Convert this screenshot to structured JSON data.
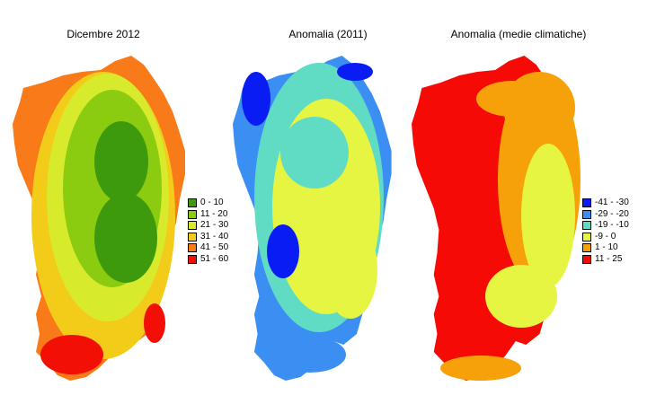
{
  "maps": [
    {
      "title": "Dicembre 2012",
      "legend": [
        {
          "label": "0 - 10",
          "color": "#3d9a0c"
        },
        {
          "label": "11 - 20",
          "color": "#8ccc10"
        },
        {
          "label": "21 - 30",
          "color": "#d8ea2c"
        },
        {
          "label": "31 - 40",
          "color": "#f3cc1a"
        },
        {
          "label": "41 - 50",
          "color": "#f97a18"
        },
        {
          "label": "51 - 60",
          "color": "#f20f06"
        }
      ]
    },
    {
      "title": "Anomalia (2011)",
      "legend": []
    },
    {
      "title": "Anomalia (medie climatiche)",
      "legend": [
        {
          "label": "-41 - -30",
          "color": "#0a1cf4"
        },
        {
          "label": "-29 - -20",
          "color": "#3c8ff2"
        },
        {
          "label": "-19 - -10",
          "color": "#60dcc4"
        },
        {
          "label": "-9 - 0",
          "color": "#e6f542"
        },
        {
          "label": "1 - 10",
          "color": "#f7a10a"
        },
        {
          "label": "11 - 25",
          "color": "#f50a06"
        }
      ]
    }
  ]
}
